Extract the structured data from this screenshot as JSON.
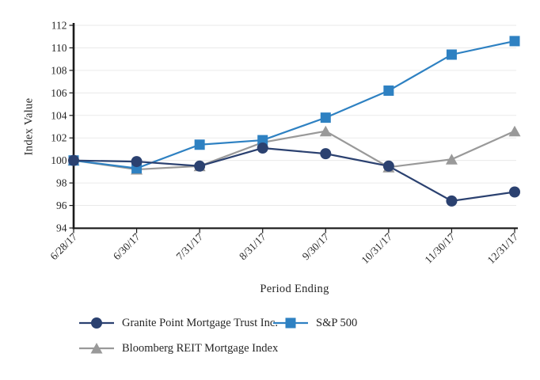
{
  "chart_data": {
    "type": "line",
    "title": "",
    "xlabel": "Period Ending",
    "ylabel": "Index Value",
    "ylim": [
      94,
      112
    ],
    "ytick_step": 2,
    "yticks": [
      94,
      96,
      98,
      100,
      102,
      104,
      106,
      108,
      110,
      112
    ],
    "grid": true,
    "legend_position": "bottom",
    "categories": [
      "6/28/17",
      "6/30/17",
      "7/31/17",
      "8/31/17",
      "9/30/17",
      "10/31/17",
      "11/30/17",
      "12/31/17"
    ],
    "series": [
      {
        "name": "Bloomberg REIT Mortgage Index",
        "marker": "triangle",
        "color": "#999999",
        "values": [
          100,
          99.2,
          99.5,
          101.6,
          102.6,
          99.4,
          100.1,
          102.6
        ]
      },
      {
        "name": "S&P 500",
        "marker": "square",
        "color": "#2e81c2",
        "values": [
          100,
          99.3,
          101.4,
          101.8,
          103.8,
          106.2,
          109.4,
          110.6
        ]
      },
      {
        "name": "Granite Point Mortgage Trust Inc.",
        "marker": "circle",
        "color": "#2b4170",
        "values": [
          100,
          99.9,
          99.5,
          101.1,
          100.6,
          99.5,
          96.4,
          97.2
        ]
      }
    ],
    "colors": {
      "gridline": "#eaeaea",
      "axis": "#1a1a1a",
      "text": "#262626"
    }
  }
}
